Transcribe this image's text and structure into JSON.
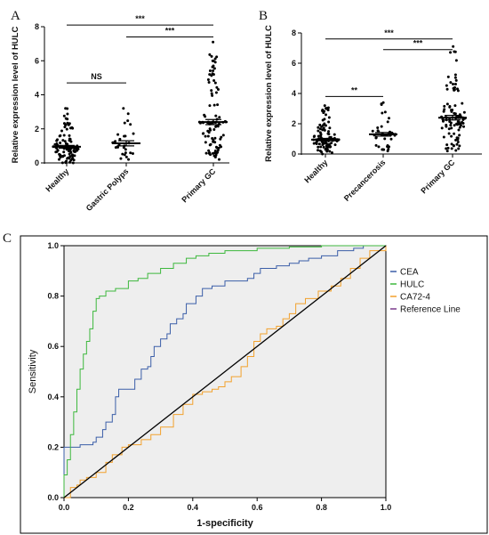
{
  "chart_data": [
    {
      "panel": "A",
      "type": "scatter",
      "ylabel": "Relative expression level of HULC",
      "ylim": [
        0,
        8
      ],
      "yticks": [
        "0",
        "2",
        "4",
        "6",
        "8"
      ],
      "categories": [
        "Healthy",
        "Gastric Polyps",
        "Primary GC"
      ],
      "means": [
        0.95,
        1.15,
        2.4
      ],
      "sem": [
        0.08,
        0.15,
        0.15
      ],
      "ranges": [
        [
          0.0,
          3.2
        ],
        [
          0.2,
          3.2
        ],
        [
          0.2,
          7.1
        ]
      ],
      "counts": [
        110,
        30,
        100
      ],
      "significance": [
        {
          "from": 0,
          "to": 1,
          "label": "NS",
          "y": 4.7
        },
        {
          "from": 1,
          "to": 2,
          "label": "***",
          "y": 7.4
        },
        {
          "from": 0,
          "to": 2,
          "label": "***",
          "y": 8.1
        }
      ]
    },
    {
      "panel": "B",
      "type": "scatter",
      "ylabel": "Relative expression level of HULC",
      "ylim": [
        0,
        8
      ],
      "yticks": [
        "0",
        "2",
        "4",
        "6",
        "8"
      ],
      "categories": [
        "Healthy",
        "Precancerosis",
        "Primary GC"
      ],
      "means": [
        0.95,
        1.3,
        2.4
      ],
      "sem": [
        0.08,
        0.12,
        0.15
      ],
      "ranges": [
        [
          0.0,
          3.2
        ],
        [
          0.2,
          3.4
        ],
        [
          0.2,
          7.1
        ]
      ],
      "counts": [
        110,
        40,
        100
      ],
      "significance": [
        {
          "from": 0,
          "to": 1,
          "label": "**",
          "y": 3.8
        },
        {
          "from": 1,
          "to": 2,
          "label": "***",
          "y": 6.9
        },
        {
          "from": 0,
          "to": 2,
          "label": "***",
          "y": 7.6
        }
      ]
    },
    {
      "panel": "C",
      "type": "line",
      "xlabel": "1-specificity",
      "ylabel": "Sensitivity",
      "xlim": [
        0,
        1
      ],
      "ylim": [
        0,
        1
      ],
      "xticks": [
        "0.0",
        "0.2",
        "0.4",
        "0.6",
        "0.8",
        "1.0"
      ],
      "yticks": [
        "0.0",
        "0.2",
        "0.4",
        "0.6",
        "0.8",
        "1.0"
      ],
      "legend_position": "right",
      "series": [
        {
          "name": "CEA",
          "color": "#3b5ea8",
          "points": [
            [
              0,
              0
            ],
            [
              0,
              0.2
            ],
            [
              0.05,
              0.21
            ],
            [
              0.09,
              0.22
            ],
            [
              0.1,
              0.24
            ],
            [
              0.12,
              0.27
            ],
            [
              0.13,
              0.3
            ],
            [
              0.15,
              0.33
            ],
            [
              0.16,
              0.4
            ],
            [
              0.17,
              0.43
            ],
            [
              0.2,
              0.43
            ],
            [
              0.22,
              0.47
            ],
            [
              0.24,
              0.51
            ],
            [
              0.26,
              0.52
            ],
            [
              0.27,
              0.56
            ],
            [
              0.28,
              0.6
            ],
            [
              0.3,
              0.63
            ],
            [
              0.32,
              0.65
            ],
            [
              0.33,
              0.69
            ],
            [
              0.35,
              0.71
            ],
            [
              0.37,
              0.73
            ],
            [
              0.38,
              0.77
            ],
            [
              0.41,
              0.8
            ],
            [
              0.43,
              0.83
            ],
            [
              0.46,
              0.84
            ],
            [
              0.5,
              0.86
            ],
            [
              0.53,
              0.86
            ],
            [
              0.57,
              0.87
            ],
            [
              0.59,
              0.89
            ],
            [
              0.61,
              0.91
            ],
            [
              0.66,
              0.92
            ],
            [
              0.7,
              0.93
            ],
            [
              0.73,
              0.94
            ],
            [
              0.76,
              0.95
            ],
            [
              0.8,
              0.96
            ],
            [
              0.85,
              0.98
            ],
            [
              0.9,
              0.99
            ],
            [
              0.93,
              1.0
            ],
            [
              1,
              1.0
            ]
          ]
        },
        {
          "name": "HULC",
          "color": "#3db83d",
          "points": [
            [
              0,
              0
            ],
            [
              0,
              0.09
            ],
            [
              0.01,
              0.15
            ],
            [
              0.02,
              0.25
            ],
            [
              0.03,
              0.34
            ],
            [
              0.04,
              0.43
            ],
            [
              0.05,
              0.51
            ],
            [
              0.06,
              0.57
            ],
            [
              0.07,
              0.62
            ],
            [
              0.08,
              0.67
            ],
            [
              0.09,
              0.74
            ],
            [
              0.1,
              0.79
            ],
            [
              0.11,
              0.8
            ],
            [
              0.13,
              0.82
            ],
            [
              0.16,
              0.83
            ],
            [
              0.2,
              0.86
            ],
            [
              0.23,
              0.87
            ],
            [
              0.26,
              0.89
            ],
            [
              0.3,
              0.91
            ],
            [
              0.34,
              0.93
            ],
            [
              0.38,
              0.95
            ],
            [
              0.41,
              0.96
            ],
            [
              0.45,
              0.97
            ],
            [
              0.5,
              0.98
            ],
            [
              0.53,
              0.98
            ],
            [
              0.6,
              0.99
            ],
            [
              0.7,
              0.995
            ],
            [
              0.8,
              1.0
            ],
            [
              1.0,
              1.0
            ]
          ]
        },
        {
          "name": "CA72-4",
          "color": "#f2a12c",
          "points": [
            [
              0,
              0
            ],
            [
              0.01,
              0.0
            ],
            [
              0.02,
              0.04
            ],
            [
              0.04,
              0.05
            ],
            [
              0.05,
              0.07
            ],
            [
              0.07,
              0.08
            ],
            [
              0.1,
              0.1
            ],
            [
              0.13,
              0.14
            ],
            [
              0.15,
              0.17
            ],
            [
              0.18,
              0.2
            ],
            [
              0.2,
              0.21
            ],
            [
              0.24,
              0.23
            ],
            [
              0.27,
              0.25
            ],
            [
              0.3,
              0.28
            ],
            [
              0.34,
              0.33
            ],
            [
              0.37,
              0.37
            ],
            [
              0.4,
              0.41
            ],
            [
              0.43,
              0.42
            ],
            [
              0.46,
              0.43
            ],
            [
              0.48,
              0.44
            ],
            [
              0.5,
              0.46
            ],
            [
              0.52,
              0.48
            ],
            [
              0.55,
              0.52
            ],
            [
              0.57,
              0.56
            ],
            [
              0.59,
              0.62
            ],
            [
              0.61,
              0.65
            ],
            [
              0.63,
              0.67
            ],
            [
              0.66,
              0.68
            ],
            [
              0.68,
              0.71
            ],
            [
              0.7,
              0.73
            ],
            [
              0.72,
              0.77
            ],
            [
              0.75,
              0.79
            ],
            [
              0.79,
              0.82
            ],
            [
              0.83,
              0.84
            ],
            [
              0.86,
              0.87
            ],
            [
              0.89,
              0.91
            ],
            [
              0.92,
              0.95
            ],
            [
              0.95,
              0.98
            ],
            [
              1.0,
              1.0
            ]
          ]
        },
        {
          "name": "Reference Line",
          "color": "#000000",
          "points": [
            [
              0,
              0
            ],
            [
              1,
              1
            ]
          ]
        }
      ]
    }
  ]
}
